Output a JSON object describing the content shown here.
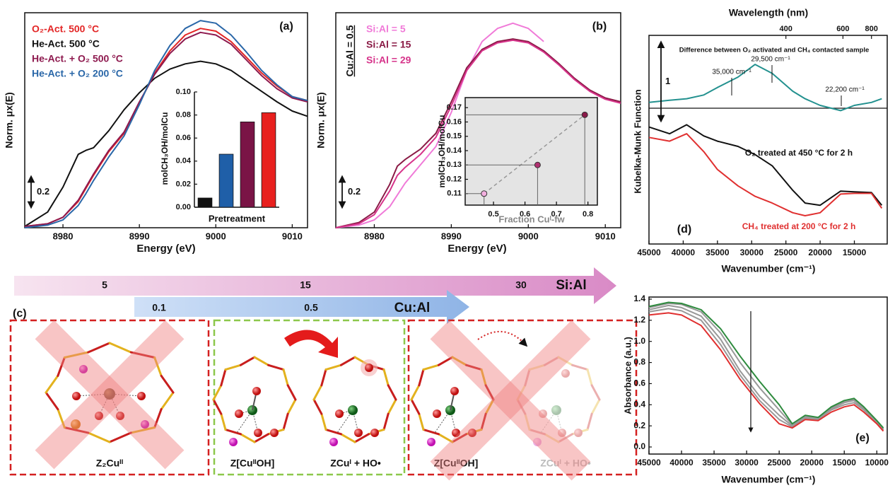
{
  "chart_data": [
    {
      "type": "line",
      "panel_label": "(a)",
      "xlabel": "Energy (eV)",
      "ylabel": "Norm. μx(E)",
      "xlim": [
        8975,
        9012
      ],
      "xticks": [
        8980,
        8990,
        9000,
        9010
      ],
      "ylim": [
        0,
        1.64
      ],
      "scale_bar": 0.2,
      "x": [
        8975,
        8978,
        8980,
        8982,
        8983,
        8984,
        8986,
        8988,
        8990,
        8992,
        8994,
        8996,
        8998,
        9000,
        9002,
        9004,
        9006,
        9008,
        9010,
        9012
      ],
      "series": [
        {
          "name": "O₂-Act. 500 °C",
          "color": "#e32626",
          "values": [
            0.01,
            0.03,
            0.08,
            0.2,
            0.3,
            0.4,
            0.58,
            0.72,
            0.95,
            1.18,
            1.35,
            1.47,
            1.52,
            1.5,
            1.42,
            1.3,
            1.18,
            1.08,
            1.0,
            0.97
          ]
        },
        {
          "name": "He-Act. 500 °C",
          "color": "#111111",
          "values": [
            0.01,
            0.12,
            0.31,
            0.56,
            0.59,
            0.61,
            0.74,
            0.9,
            1.03,
            1.14,
            1.21,
            1.25,
            1.27,
            1.25,
            1.2,
            1.12,
            1.04,
            0.96,
            0.89,
            0.85
          ]
        },
        {
          "name": "He-Act. + O₂ 500 °C",
          "color": "#8e1a4f",
          "values": [
            0.01,
            0.03,
            0.08,
            0.21,
            0.31,
            0.41,
            0.59,
            0.73,
            0.96,
            1.17,
            1.33,
            1.44,
            1.49,
            1.47,
            1.4,
            1.28,
            1.16,
            1.06,
            0.99,
            0.96
          ]
        },
        {
          "name": "He-Act. + O₂ 200 °C",
          "color": "#2a67a8",
          "values": [
            0.0,
            0.02,
            0.06,
            0.17,
            0.26,
            0.36,
            0.54,
            0.7,
            0.94,
            1.2,
            1.39,
            1.52,
            1.58,
            1.56,
            1.47,
            1.34,
            1.2,
            1.09,
            1.0,
            0.97
          ]
        }
      ]
    },
    {
      "type": "bar",
      "xlabel": "Pretreatment",
      "ylabel": "molCH₃OH/molCu",
      "categories": [
        null,
        null,
        null,
        null
      ],
      "values": [
        0.008,
        0.046,
        0.074,
        0.082
      ],
      "colors": [
        "#111111",
        "#1f5fa8",
        "#7a1446",
        "#e8201e"
      ],
      "ylim": [
        0,
        0.1
      ],
      "yticks": [
        {
          "value": 0,
          "label": "0.00"
        },
        0.02,
        0.04,
        0.06,
        0.08,
        {
          "value": 0.1,
          "label": "0.10"
        }
      ]
    },
    {
      "type": "line",
      "panel_label": "(b)",
      "xlabel": "Energy (eV)",
      "ylabel": "Norm. μx(E)",
      "side_label": "Cu:Al = 0.5",
      "xlim": [
        8975,
        9012
      ],
      "xticks": [
        8980,
        8990,
        9000,
        9010
      ],
      "ylim": [
        0,
        1.64
      ],
      "scale_bar": 0.2,
      "x": [
        8975,
        8978,
        8980,
        8982,
        8983,
        8984,
        8986,
        8988,
        8990,
        8992,
        8994,
        8996,
        8998,
        9000,
        9002,
        9004,
        9006,
        9008,
        9010,
        9012
      ],
      "series": [
        {
          "name": "Si:Al = 5",
          "color": "#f07ad8",
          "values": [
            0.0,
            0.02,
            0.06,
            0.16,
            0.25,
            0.34,
            0.48,
            0.62,
            0.88,
            1.2,
            1.42,
            1.52,
            1.56,
            1.52,
            1.42,
            null,
            null,
            null,
            null,
            null
          ]
        },
        {
          "name": "Si:Al = 15",
          "color": "#8a1a45",
          "values": [
            0.0,
            0.04,
            0.12,
            0.33,
            0.47,
            0.52,
            0.6,
            0.72,
            0.96,
            1.22,
            1.36,
            1.42,
            1.44,
            1.42,
            1.35,
            1.25,
            1.14,
            1.05,
            0.99,
            0.96
          ]
        },
        {
          "name": "Si:Al = 29",
          "color": "#d6338a",
          "values": [
            0.0,
            0.03,
            0.1,
            0.28,
            0.4,
            0.46,
            0.56,
            0.69,
            0.93,
            1.2,
            1.35,
            1.41,
            1.43,
            1.41,
            1.34,
            1.24,
            1.13,
            1.04,
            0.98,
            0.95
          ]
        }
      ]
    },
    {
      "type": "scatter",
      "xlabel": "Fraction Cuᴵ-fw",
      "ylabel": "molCH₃OH/molCu",
      "x": [
        0.47,
        0.64,
        0.79
      ],
      "values": [
        0.11,
        0.13,
        0.165
      ],
      "colors": [
        "#f3b0e0",
        "#b03070",
        "#8b1a4a"
      ],
      "xlim": [
        0.41,
        0.83
      ],
      "xticks": [
        0.5,
        0.6,
        0.7,
        0.8
      ],
      "ylim": [
        0.102,
        0.177
      ],
      "yticks": [
        0.11,
        0.12,
        0.13,
        0.14,
        0.15,
        0.16,
        0.17
      ],
      "background": "#e4e4e4",
      "fit_line": true,
      "drop_lines": true
    },
    {
      "type": "line",
      "panel_label": "(d)",
      "xlabel": "Wavenumber (cm⁻¹)",
      "ylabel": "Kubelka-Munk Function",
      "x2label": "Wavelength (nm)",
      "x2ticks": [
        400,
        600,
        800
      ],
      "xlim": [
        45000,
        10200
      ],
      "xticks": [
        45000,
        40000,
        35000,
        30000,
        25000,
        20000,
        15000
      ],
      "ylim": [
        0,
        2.8
      ],
      "scale_bar": 1,
      "annotations": [
        "Difference between O₂ activated and CH₄ contacted sample",
        "35,000 cm⁻¹",
        "29,500 cm⁻¹",
        "22,200 cm⁻¹",
        "O₂ treated at 450 °C for 2 h",
        "CH₄ treated at 200 °C for 2 h"
      ],
      "x": [
        45000,
        42000,
        39500,
        37000,
        35000,
        32000,
        29500,
        27000,
        24000,
        22200,
        20000,
        17000,
        15000,
        12500,
        11000
      ],
      "series": [
        {
          "color": "#23918f",
          "values": [
            1.9,
            1.93,
            1.95,
            2.0,
            2.1,
            2.24,
            2.41,
            2.29,
            2.05,
            1.95,
            1.86,
            1.79,
            1.86,
            1.9,
            1.95
          ]
        },
        {
          "color": "#111111",
          "values": [
            1.57,
            1.48,
            1.6,
            1.45,
            1.38,
            1.31,
            1.2,
            1.05,
            0.72,
            0.55,
            0.52,
            0.71,
            0.7,
            0.69,
            0.52
          ]
        },
        {
          "color": "#e03030",
          "values": [
            1.43,
            1.38,
            1.48,
            1.24,
            1.0,
            0.78,
            0.64,
            0.55,
            0.42,
            0.38,
            0.42,
            0.67,
            0.68,
            0.68,
            0.48
          ]
        }
      ]
    },
    {
      "type": "line",
      "panel_label": "(e)",
      "xlabel": "Wavenumber (cm⁻¹)",
      "ylabel": "Absorbance (a.u.)",
      "xlim": [
        45000,
        8400
      ],
      "xticks": [
        45000,
        40000,
        35000,
        30000,
        25000,
        20000,
        15000,
        10000
      ],
      "ylim": [
        -0.067,
        1.42
      ],
      "yticks": [
        {
          "value": 0,
          "label": "0.0"
        },
        0.2,
        0.4,
        0.6,
        0.8,
        {
          "value": 1,
          "label": "1.0"
        },
        1.2,
        1.4
      ],
      "x": [
        45000,
        42000,
        40000,
        37000,
        34000,
        31000,
        28000,
        25000,
        23000,
        21000,
        19000,
        17000,
        15000,
        13500,
        12000,
        10000,
        9000
      ],
      "series": [
        {
          "color": "#999999",
          "values": [
            1.32,
            1.36,
            1.35,
            1.28,
            1.08,
            0.8,
            0.56,
            0.35,
            0.21,
            0.29,
            0.28,
            0.37,
            0.43,
            0.45,
            0.37,
            0.24,
            0.17
          ]
        },
        {
          "color": "#999999",
          "values": [
            1.3,
            1.34,
            1.32,
            1.24,
            1.02,
            0.72,
            0.48,
            0.3,
            0.2,
            0.28,
            0.27,
            0.36,
            0.42,
            0.44,
            0.36,
            0.24,
            0.17
          ]
        },
        {
          "color": "#999999",
          "values": [
            1.28,
            1.31,
            1.29,
            1.2,
            0.97,
            0.68,
            0.44,
            0.26,
            0.19,
            0.27,
            0.26,
            0.35,
            0.4,
            0.42,
            0.35,
            0.23,
            0.16
          ]
        },
        {
          "color": "#2e8b3e",
          "values": [
            1.33,
            1.37,
            1.36,
            1.3,
            1.12,
            0.86,
            0.62,
            0.4,
            0.22,
            0.3,
            0.28,
            0.38,
            0.44,
            0.46,
            0.38,
            0.25,
            0.18
          ]
        },
        {
          "color": "#e03030",
          "values": [
            1.25,
            1.27,
            1.25,
            1.15,
            0.92,
            0.64,
            0.41,
            0.22,
            0.18,
            0.26,
            0.25,
            0.33,
            0.38,
            0.4,
            0.33,
            0.22,
            0.15
          ]
        }
      ]
    }
  ],
  "diagram": {
    "panel_label": "(c)",
    "si_al_arrow": {
      "labels": [
        "5",
        "15",
        "30"
      ],
      "title": "Si:Al"
    },
    "cu_al_arrow": {
      "labels": [
        "0.1",
        "0.5"
      ],
      "title": "Cu:Al"
    },
    "structures": [
      "Z₂Cuᴵᴵ",
      "Z[CuᴵᴵOH]",
      "ZCuᴵ + HO•",
      "Z[CuᴵᴵOH]",
      "ZCuᴵ + HO•"
    ]
  }
}
